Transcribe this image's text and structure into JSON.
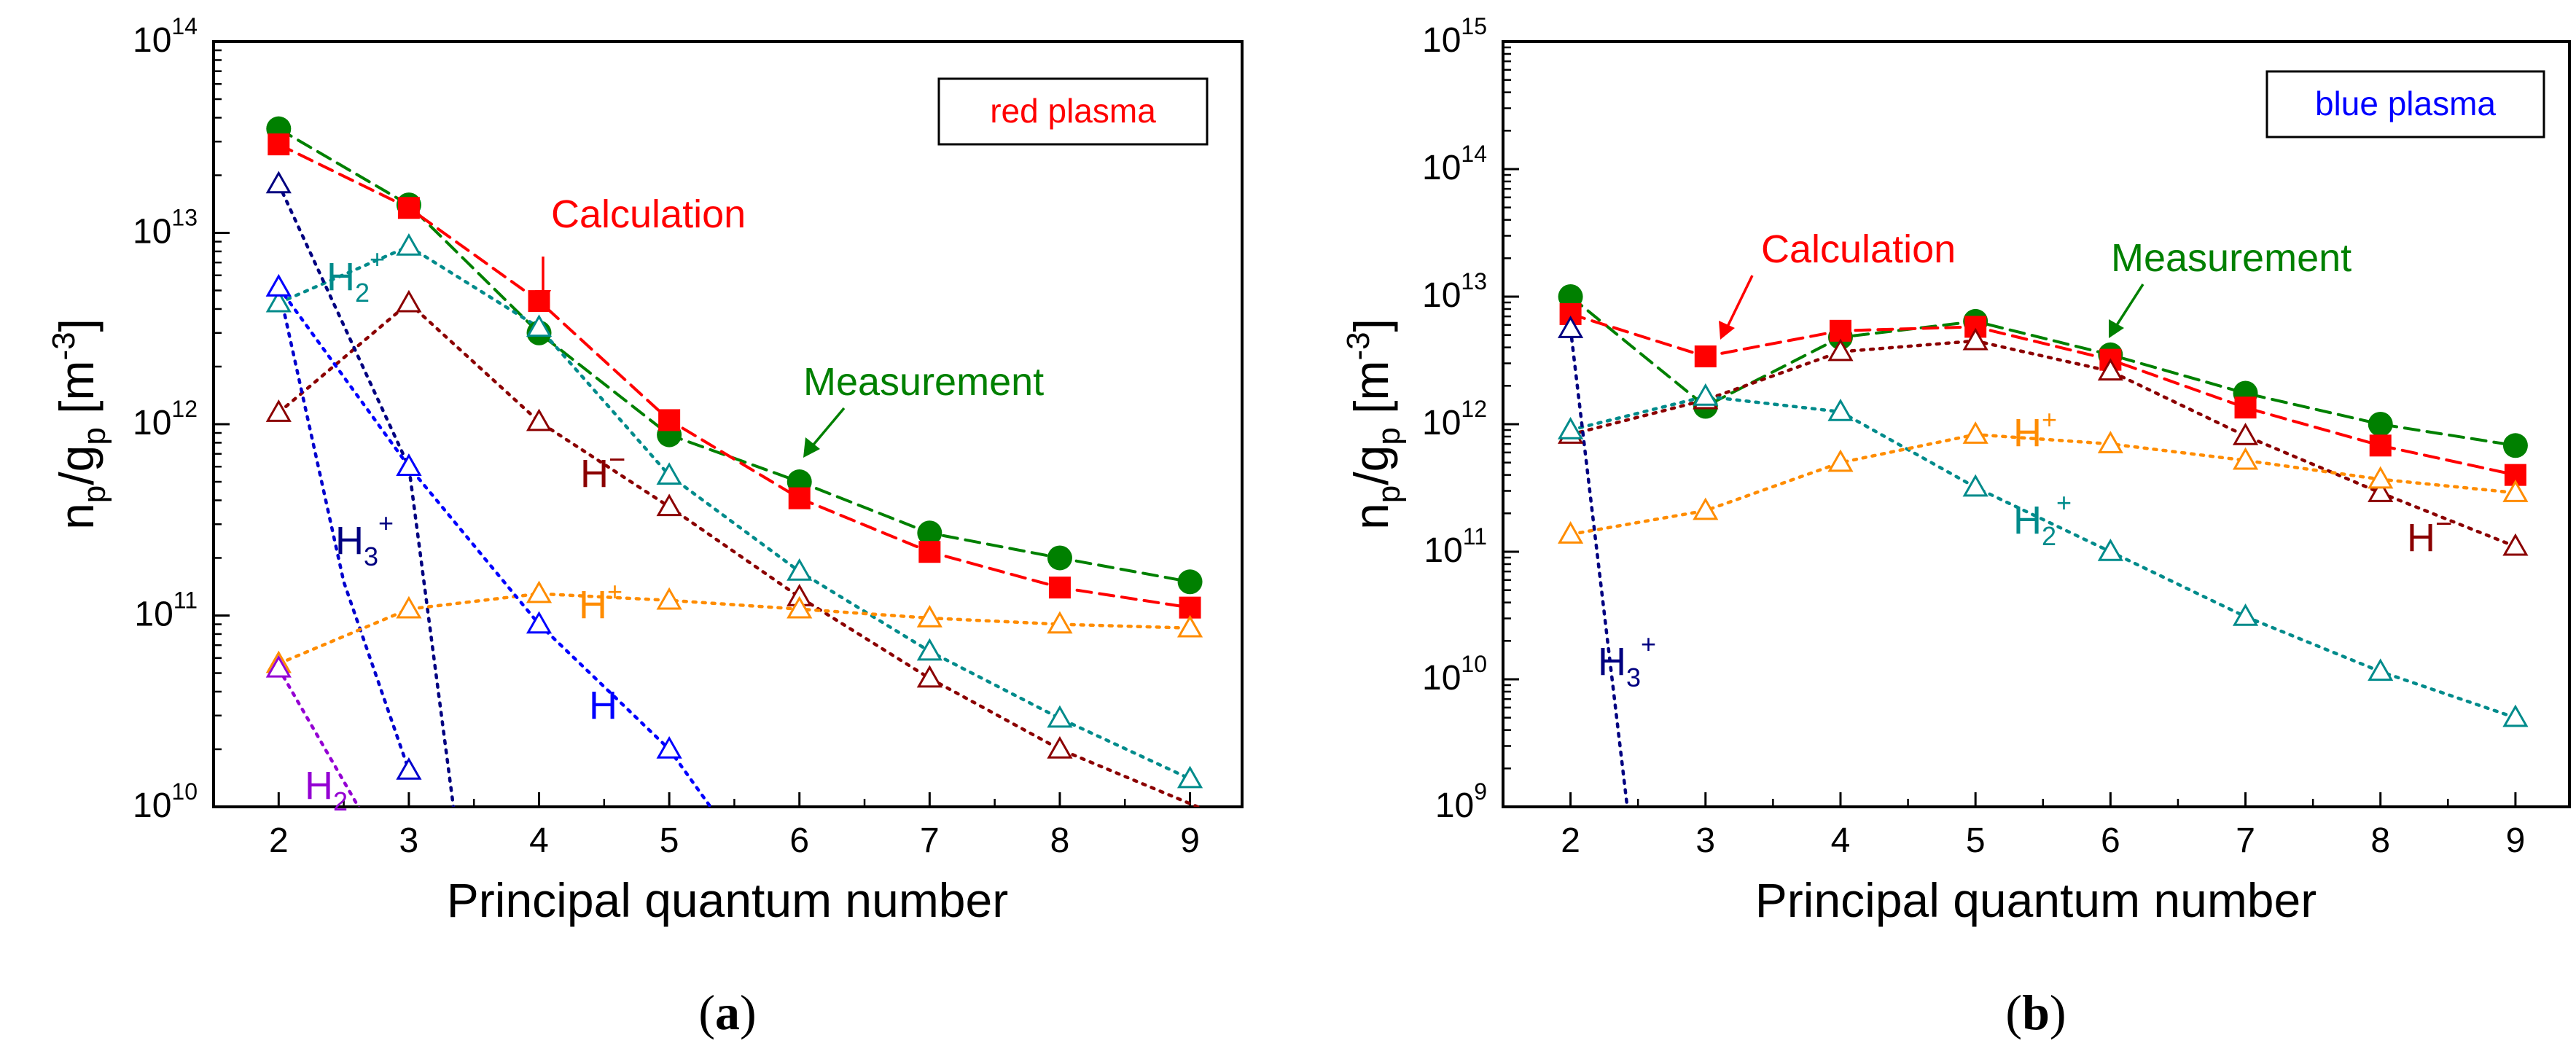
{
  "chart_data": [
    {
      "type": "line",
      "panel_label": "a",
      "ylog": true,
      "xlabel": "Principal quantum number",
      "ylabel": {
        "main": "n",
        "sub1": "p",
        "slash": "/g",
        "sub2": "p",
        "unit": " [m",
        "exp": "-3",
        "close": "]"
      },
      "xlim": [
        1.5,
        9.4
      ],
      "ylim": [
        10000000000.0,
        100000000000000.0
      ],
      "xticks": [
        "2",
        "3",
        "4",
        "5",
        "6",
        "7",
        "8",
        "9"
      ],
      "ytick_exponents": [
        "10",
        "11",
        "12",
        "13",
        "14"
      ],
      "tick_base": "10",
      "legend": {
        "text": "red plasma",
        "color": "#ff0000",
        "placement": "top-right"
      },
      "annotations": [
        {
          "key": "calc",
          "text": "Calculation",
          "color": "#ff0000"
        },
        {
          "key": "meas",
          "text": "Measurement",
          "color": "#008000"
        },
        {
          "key": "H2p",
          "base": "H",
          "sub": "2",
          "sup": "+",
          "color": "#008b8b"
        },
        {
          "key": "Hm",
          "base": "H",
          "sup": "−",
          "color": "#8b0000"
        },
        {
          "key": "H3p",
          "base": "H",
          "sub": "3",
          "sup": "+",
          "color": "#000080"
        },
        {
          "key": "Hp",
          "base": "H",
          "sup": "+",
          "color": "#ff8c00"
        },
        {
          "key": "H",
          "base": "H",
          "color": "#0000ff"
        },
        {
          "key": "H2",
          "base": "H",
          "sub": "2",
          "color": "#9400d3"
        }
      ],
      "series": [
        {
          "name": "Measurement",
          "marker": "circle",
          "dash": "dashed",
          "color": "#008000",
          "x": [
            2,
            3,
            4,
            5,
            6,
            7,
            8,
            9
          ],
          "y": [
            35000000000000.0,
            14000000000000.0,
            3000000000000.0,
            880000000000.0,
            500000000000.0,
            270000000000.0,
            200000000000.0,
            150000000000.0
          ]
        },
        {
          "name": "Calculation",
          "marker": "square",
          "dash": "dashed",
          "color": "#ff0000",
          "x": [
            2,
            3,
            4,
            5,
            6,
            7,
            8,
            9
          ],
          "y": [
            29000000000000.0,
            13500000000000.0,
            4400000000000.0,
            1050000000000.0,
            410000000000.0,
            215000000000.0,
            140000000000.0,
            110000000000.0
          ]
        },
        {
          "name": "H2+",
          "marker": "triangle",
          "dash": "dotted",
          "color": "#008b8b",
          "x": [
            2,
            3,
            4,
            5,
            6,
            7,
            8,
            9
          ],
          "y": [
            4300000000000.0,
            8500000000000.0,
            3200000000000.0,
            540000000000.0,
            170000000000.0,
            65000000000.0,
            29000000000.0,
            14000000000.0
          ]
        },
        {
          "name": "H-",
          "marker": "triangle",
          "dash": "dotted",
          "color": "#8b0000",
          "x": [
            2,
            3,
            4,
            5,
            6,
            7,
            8,
            9.4
          ],
          "y": [
            1150000000000.0,
            4300000000000.0,
            1030000000000.0,
            370000000000.0,
            125000000000.0,
            47000000000.0,
            20000000000.0,
            8000000000.0
          ]
        },
        {
          "name": "H3+",
          "marker": "triangle",
          "dash": "dotted",
          "color": "#000080",
          "x": [
            2,
            3,
            3.4
          ],
          "y": [
            18000000000000.0,
            600000000000.0,
            5000000000.0
          ]
        },
        {
          "name": "H3+ (second curve)",
          "marker": "triangle",
          "dash": "dotted",
          "color": "#0000cd",
          "x": [
            2,
            2.5,
            3
          ],
          "y": [
            5200000000000.0,
            150000000000.0,
            15500000000.0
          ]
        },
        {
          "name": "H+",
          "marker": "triangle",
          "dash": "dotted",
          "color": "#ff8c00",
          "x": [
            2,
            3,
            4,
            5,
            6,
            7,
            8,
            9
          ],
          "y": [
            56000000000.0,
            108000000000.0,
            130000000000.0,
            120000000000.0,
            108000000000.0,
            97000000000.0,
            90000000000.0,
            86000000000.0
          ]
        },
        {
          "name": "H",
          "marker": "triangle",
          "dash": "dotted",
          "color": "#0000ff",
          "x": [
            2,
            3,
            4,
            5,
            5.55
          ],
          "y": [
            5200000000000.0,
            600000000000.0,
            90000000000.0,
            20000000000.0,
            6000000000.0
          ]
        },
        {
          "name": "H2",
          "marker": "triangle",
          "dash": "dotted",
          "color": "#9400d3",
          "x": [
            2,
            2.8
          ],
          "y": [
            53000000000.0,
            6000000000.0
          ]
        }
      ]
    },
    {
      "type": "line",
      "panel_label": "b",
      "ylog": true,
      "xlabel": "Principal quantum number",
      "ylabel": {
        "main": "n",
        "sub1": "p",
        "slash": "/g",
        "sub2": "p",
        "unit": " [m",
        "exp": "-3",
        "close": "]"
      },
      "xlim": [
        1.5,
        9.4
      ],
      "ylim": [
        1000000000.0,
        1000000000000000.0
      ],
      "xticks": [
        "2",
        "3",
        "4",
        "5",
        "6",
        "7",
        "8",
        "9"
      ],
      "ytick_exponents": [
        "9",
        "10",
        "11",
        "12",
        "13",
        "14",
        "15"
      ],
      "tick_base": "10",
      "legend": {
        "text": "blue plasma",
        "color": "#0000ff",
        "placement": "top-right"
      },
      "annotations": [
        {
          "key": "calc",
          "text": "Calculation",
          "color": "#ff0000"
        },
        {
          "key": "meas",
          "text": "Measurement",
          "color": "#008000"
        },
        {
          "key": "Hp",
          "base": "H",
          "sup": "+",
          "color": "#ff8c00"
        },
        {
          "key": "H2p",
          "base": "H",
          "sub": "2",
          "sup": "+",
          "color": "#008b8b"
        },
        {
          "key": "Hm",
          "base": "H",
          "sup": "−",
          "color": "#8b0000"
        },
        {
          "key": "H3p",
          "base": "H",
          "sub": "3",
          "sup": "+",
          "color": "#000080"
        }
      ],
      "series": [
        {
          "name": "Measurement",
          "marker": "circle",
          "dash": "dashed",
          "color": "#008000",
          "x": [
            2,
            3,
            4,
            5,
            6,
            7,
            8,
            9
          ],
          "y": [
            10000000000000.0,
            1380000000000.0,
            4800000000000.0,
            6400000000000.0,
            3500000000000.0,
            1750000000000.0,
            1000000000000.0,
            680000000000.0
          ]
        },
        {
          "name": "Calculation",
          "marker": "square",
          "dash": "dashed",
          "color": "#ff0000",
          "x": [
            2,
            3,
            4,
            5,
            6,
            7,
            8,
            9
          ],
          "y": [
            7300000000000.0,
            3400000000000.0,
            5400000000000.0,
            5800000000000.0,
            3200000000000.0,
            1350000000000.0,
            680000000000.0,
            400000000000.0
          ]
        },
        {
          "name": "H-",
          "marker": "triangle",
          "dash": "dotted",
          "color": "#8b0000",
          "x": [
            2,
            3,
            4,
            5,
            6,
            7,
            8,
            9
          ],
          "y": [
            830000000000.0,
            1550000000000.0,
            3700000000000.0,
            4500000000000.0,
            2600000000000.0,
            810000000000.0,
            290000000000.0,
            110000000000.0
          ]
        },
        {
          "name": "H2+",
          "marker": "triangle",
          "dash": "dotted",
          "color": "#008b8b",
          "x": [
            2,
            3,
            4,
            5,
            6,
            7,
            8,
            9
          ],
          "y": [
            900000000000.0,
            1650000000000.0,
            1250000000000.0,
            320000000000.0,
            100000000000.0,
            31000000000.0,
            11500000000.0,
            5000000000.0
          ]
        },
        {
          "name": "H+",
          "marker": "triangle",
          "dash": "dotted",
          "color": "#ff8c00",
          "x": [
            2,
            3,
            4,
            5,
            6,
            7,
            8,
            9
          ],
          "y": [
            137000000000.0,
            210000000000.0,
            500000000000.0,
            830000000000.0,
            700000000000.0,
            520000000000.0,
            370000000000.0,
            290000000000.0
          ]
        },
        {
          "name": "H3+",
          "marker": "triangle",
          "dash": "dotted",
          "color": "#000080",
          "x": [
            2,
            2.42
          ],
          "y": [
            5600000000000.0,
            1000000000.0
          ]
        }
      ]
    }
  ]
}
